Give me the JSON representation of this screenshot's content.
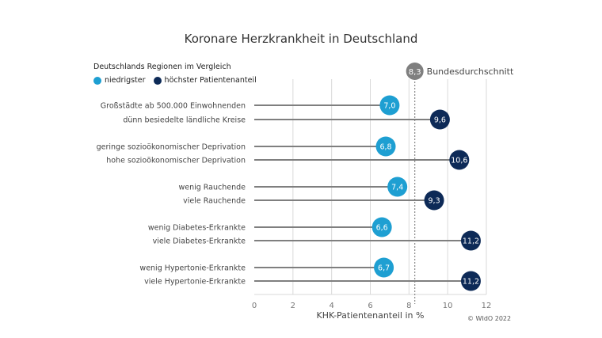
{
  "chart_data": {
    "type": "dot-lollipop",
    "title": "Koronare Herzkrankheit in Deutschland",
    "subtitle": "Deutschlands Regionen im Vergleich",
    "legend": [
      {
        "name": "niedrigster",
        "color": "#1e9fd2"
      },
      {
        "name": "höchster Patientenanteil",
        "color": "#0d2a57"
      }
    ],
    "xlabel": "KHK-Patientenanteil in %",
    "xlim": [
      0,
      12
    ],
    "xticks": [
      "0",
      "2",
      "4",
      "6",
      "8",
      "10",
      "12"
    ],
    "grid": true,
    "reference": {
      "value": 8.3,
      "label": "8,3",
      "name": "Bundesdurchschnitt",
      "color": "#7f7f7f"
    },
    "rows": [
      {
        "label": "Großstädte ab 500.000 Einwohnenden",
        "value": 7.0,
        "text": "7,0",
        "group": "niedrigster"
      },
      {
        "label": "dünn besiedelte ländliche Kreise",
        "value": 9.6,
        "text": "9,6",
        "group": "höchster"
      },
      {
        "label": "geringe sozioökonomischer Deprivation",
        "value": 6.8,
        "text": "6,8",
        "group": "niedrigster"
      },
      {
        "label": "hohe sozioökonomischer Deprivation",
        "value": 10.6,
        "text": "10,6",
        "group": "höchster"
      },
      {
        "label": "wenig Rauchende",
        "value": 7.4,
        "text": "7,4",
        "group": "niedrigster"
      },
      {
        "label": "viele Rauchende",
        "value": 9.3,
        "text": "9,3",
        "group": "höchster"
      },
      {
        "label": "wenig Diabetes-Erkrankte",
        "value": 6.6,
        "text": "6,6",
        "group": "niedrigster"
      },
      {
        "label": "viele Diabetes-Erkrankte",
        "value": 11.2,
        "text": "11,2",
        "group": "höchster"
      },
      {
        "label": "wenig Hypertonie-Erkrankte",
        "value": 6.7,
        "text": "6,7",
        "group": "niedrigster"
      },
      {
        "label": "viele Hypertonie-Erkrankte",
        "value": 11.2,
        "text": "11,2",
        "group": "höchster"
      }
    ],
    "copyright": "© WIdO 2022"
  }
}
